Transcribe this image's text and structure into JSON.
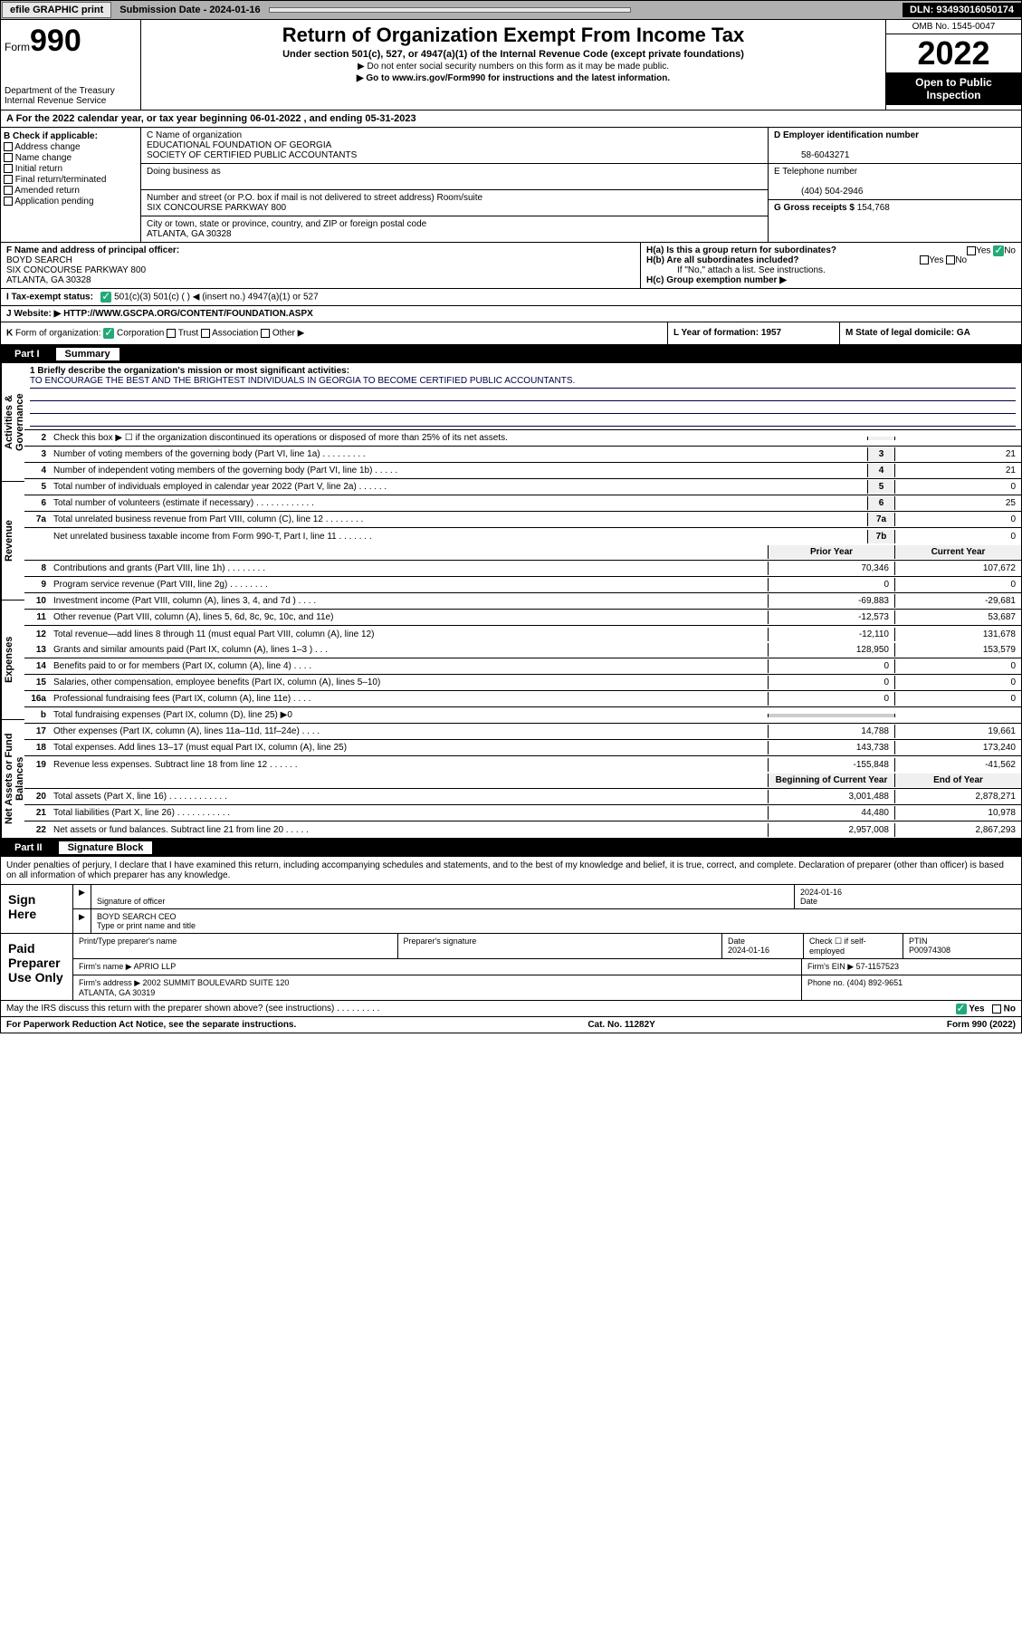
{
  "topbar": {
    "efile": "efile GRAPHIC print",
    "submission": "Submission Date - 2024-01-16",
    "dln": "DLN: 93493016050174"
  },
  "header": {
    "form_label": "Form",
    "form_num": "990",
    "dept": "Department of the Treasury\nInternal Revenue Service",
    "title": "Return of Organization Exempt From Income Tax",
    "sub1": "Under section 501(c), 527, or 4947(a)(1) of the Internal Revenue Code (except private foundations)",
    "sub2": "▶ Do not enter social security numbers on this form as it may be made public.",
    "sub3": "▶ Go to www.irs.gov/Form990 for instructions and the latest information.",
    "omb": "OMB No. 1545-0047",
    "year": "2022",
    "open": "Open to Public Inspection"
  },
  "a": "A For the 2022 calendar year, or tax year beginning 06-01-2022   , and ending 05-31-2023",
  "b": {
    "title": "B Check if applicable:",
    "items": [
      "Address change",
      "Name change",
      "Initial return",
      "Final return/terminated",
      "Amended return",
      "Application pending"
    ]
  },
  "c": {
    "label": "C Name of organization",
    "name": "EDUCATIONAL FOUNDATION OF GEORGIA\nSOCIETY OF CERTIFIED PUBLIC ACCOUNTANTS",
    "dba": "Doing business as",
    "street_label": "Number and street (or P.O. box if mail is not delivered to street address)        Room/suite",
    "street": "SIX CONCOURSE PARKWAY 800",
    "city_label": "City or town, state or province, country, and ZIP or foreign postal code",
    "city": "ATLANTA, GA  30328"
  },
  "d": {
    "label": "D Employer identification number",
    "val": "58-6043271"
  },
  "e": {
    "label": "E Telephone number",
    "val": "(404) 504-2946"
  },
  "g": {
    "label": "G Gross receipts $",
    "val": "154,768"
  },
  "f": {
    "label": "F Name and address of principal officer:",
    "name": "BOYD SEARCH",
    "addr": "SIX CONCOURSE PARKWAY 800\nATLANTA, GA  30328"
  },
  "h": {
    "ha": "H(a)  Is this a group return for subordinates?",
    "hb": "H(b)  Are all subordinates included?",
    "hbnote": "If \"No,\" attach a list. See instructions.",
    "hc": "H(c)  Group exemption number ▶"
  },
  "i": "I    Tax-exempt status:",
  "i_opts": "501(c)(3)      501(c) (  ) ◀ (insert no.)      4947(a)(1) or      527",
  "j": "J    Website: ▶  HTTP://WWW.GSCPA.ORG/CONTENT/FOUNDATION.ASPX",
  "k": "K Form of organization:      Corporation      Trust      Association      Other ▶",
  "l": "L Year of formation: 1957",
  "m": "M State of legal domicile: GA",
  "part1": {
    "num": "Part I",
    "title": "Summary"
  },
  "mission": {
    "q": "1   Briefly describe the organization's mission or most significant activities:",
    "text": "TO ENCOURAGE THE BEST AND THE BRIGHTEST INDIVIDUALS IN GEORGIA TO BECOME CERTIFIED PUBLIC ACCOUNTANTS."
  },
  "lines": [
    {
      "n": "2",
      "d": "Check this box ▶ ☐  if the organization discontinued its operations or disposed of more than 25% of its net assets.",
      "b": "",
      "v": ""
    },
    {
      "n": "3",
      "d": "Number of voting members of the governing body (Part VI, line 1a)  .    .    .    .    .    .    .    .    .",
      "b": "3",
      "v": "21"
    },
    {
      "n": "4",
      "d": "Number of independent voting members of the governing body (Part VI, line 1b)  .    .    .    .    .",
      "b": "4",
      "v": "21"
    },
    {
      "n": "5",
      "d": "Total number of individuals employed in calendar year 2022 (Part V, line 2a)  .    .    .    .    .    .",
      "b": "5",
      "v": "0"
    },
    {
      "n": "6",
      "d": "Total number of volunteers (estimate if necessary)  .    .    .    .    .    .    .    .    .    .    .    .",
      "b": "6",
      "v": "25"
    },
    {
      "n": "7a",
      "d": "Total unrelated business revenue from Part VIII, column (C), line 12  .    .    .    .    .    .    .    .",
      "b": "7a",
      "v": "0"
    },
    {
      "n": "",
      "d": "Net unrelated business taxable income from Form 990-T, Part I, line 11  .    .    .    .    .    .    .",
      "b": "7b",
      "v": "0"
    }
  ],
  "rev_hdr": {
    "prior": "Prior Year",
    "current": "Current Year"
  },
  "revenue": [
    {
      "n": "8",
      "d": "Contributions and grants (Part VIII, line 1h)  .    .    .    .    .    .    .    .",
      "p": "70,346",
      "c": "107,672"
    },
    {
      "n": "9",
      "d": "Program service revenue (Part VIII, line 2g)  .    .    .    .    .    .    .    .",
      "p": "0",
      "c": "0"
    },
    {
      "n": "10",
      "d": "Investment income (Part VIII, column (A), lines 3, 4, and 7d )  .    .    .    .",
      "p": "-69,883",
      "c": "-29,681"
    },
    {
      "n": "11",
      "d": "Other revenue (Part VIII, column (A), lines 5, 6d, 8c, 9c, 10c, and 11e)",
      "p": "-12,573",
      "c": "53,687"
    },
    {
      "n": "12",
      "d": "Total revenue—add lines 8 through 11 (must equal Part VIII, column (A), line 12)",
      "p": "-12,110",
      "c": "131,678"
    }
  ],
  "expenses": [
    {
      "n": "13",
      "d": "Grants and similar amounts paid (Part IX, column (A), lines 1–3 )  .    .    .",
      "p": "128,950",
      "c": "153,579"
    },
    {
      "n": "14",
      "d": "Benefits paid to or for members (Part IX, column (A), line 4)  .    .    .    .",
      "p": "0",
      "c": "0"
    },
    {
      "n": "15",
      "d": "Salaries, other compensation, employee benefits (Part IX, column (A), lines 5–10)",
      "p": "0",
      "c": "0"
    },
    {
      "n": "16a",
      "d": "Professional fundraising fees (Part IX, column (A), line 11e)  .    .    .    .",
      "p": "0",
      "c": "0"
    },
    {
      "n": "b",
      "d": "Total fundraising expenses (Part IX, column (D), line 25) ▶0",
      "p": "",
      "c": "",
      "grey": true
    },
    {
      "n": "17",
      "d": "Other expenses (Part IX, column (A), lines 11a–11d, 11f–24e)  .    .    .    .",
      "p": "14,788",
      "c": "19,661"
    },
    {
      "n": "18",
      "d": "Total expenses. Add lines 13–17 (must equal Part IX, column (A), line 25)",
      "p": "143,738",
      "c": "173,240"
    },
    {
      "n": "19",
      "d": "Revenue less expenses. Subtract line 18 from line 12  .    .    .    .    .    .",
      "p": "-155,848",
      "c": "-41,562"
    }
  ],
  "net_hdr": {
    "prior": "Beginning of Current Year",
    "current": "End of Year"
  },
  "netassets": [
    {
      "n": "20",
      "d": "Total assets (Part X, line 16)  .    .    .    .    .    .    .    .    .    .    .    .",
      "p": "3,001,488",
      "c": "2,878,271"
    },
    {
      "n": "21",
      "d": "Total liabilities (Part X, line 26)  .    .    .    .    .    .    .    .    .    .    .",
      "p": "44,480",
      "c": "10,978"
    },
    {
      "n": "22",
      "d": "Net assets or fund balances. Subtract line 21 from line 20  .    .    .    .    .",
      "p": "2,957,008",
      "c": "2,867,293"
    }
  ],
  "sidebars": [
    "Activities & Governance",
    "Revenue",
    "Expenses",
    "Net Assets or Fund Balances"
  ],
  "part2": {
    "num": "Part II",
    "title": "Signature Block"
  },
  "sig": {
    "penalty": "Under penalties of perjury, I declare that I have examined this return, including accompanying schedules and statements, and to the best of my knowledge and belief, it is true, correct, and complete. Declaration of preparer (other than officer) is based on all information of which preparer has any knowledge.",
    "sign_here": "Sign Here",
    "sig_officer": "Signature of officer",
    "date": "2024-01-16",
    "name_title": "BOYD SEARCH  CEO",
    "type_name": "Type or print name and title",
    "paid": "Paid Preparer Use Only",
    "prep_name_label": "Print/Type preparer's name",
    "prep_sig_label": "Preparer's signature",
    "date_label": "Date",
    "date2": "2024-01-16",
    "check_label": "Check ☐ if self-employed",
    "ptin_label": "PTIN",
    "ptin": "P00974308",
    "firm_name_label": "Firm's name    ▶",
    "firm_name": "APRIO LLP",
    "firm_ein_label": "Firm's EIN ▶",
    "firm_ein": "57-1157523",
    "firm_addr_label": "Firm's address ▶",
    "firm_addr": "2002 SUMMIT BOULEVARD SUITE 120\n                              ATLANTA, GA  30319",
    "phone_label": "Phone no.",
    "phone": "(404) 892-9651",
    "discuss": "May the IRS discuss this return with the preparer shown above? (see instructions)   .    .    .    .    .    .    .    .    .",
    "yes": "Yes",
    "no": "No"
  },
  "footer": {
    "left": "For Paperwork Reduction Act Notice, see the separate instructions.",
    "mid": "Cat. No. 11282Y",
    "right": "Form 990 (2022)"
  }
}
